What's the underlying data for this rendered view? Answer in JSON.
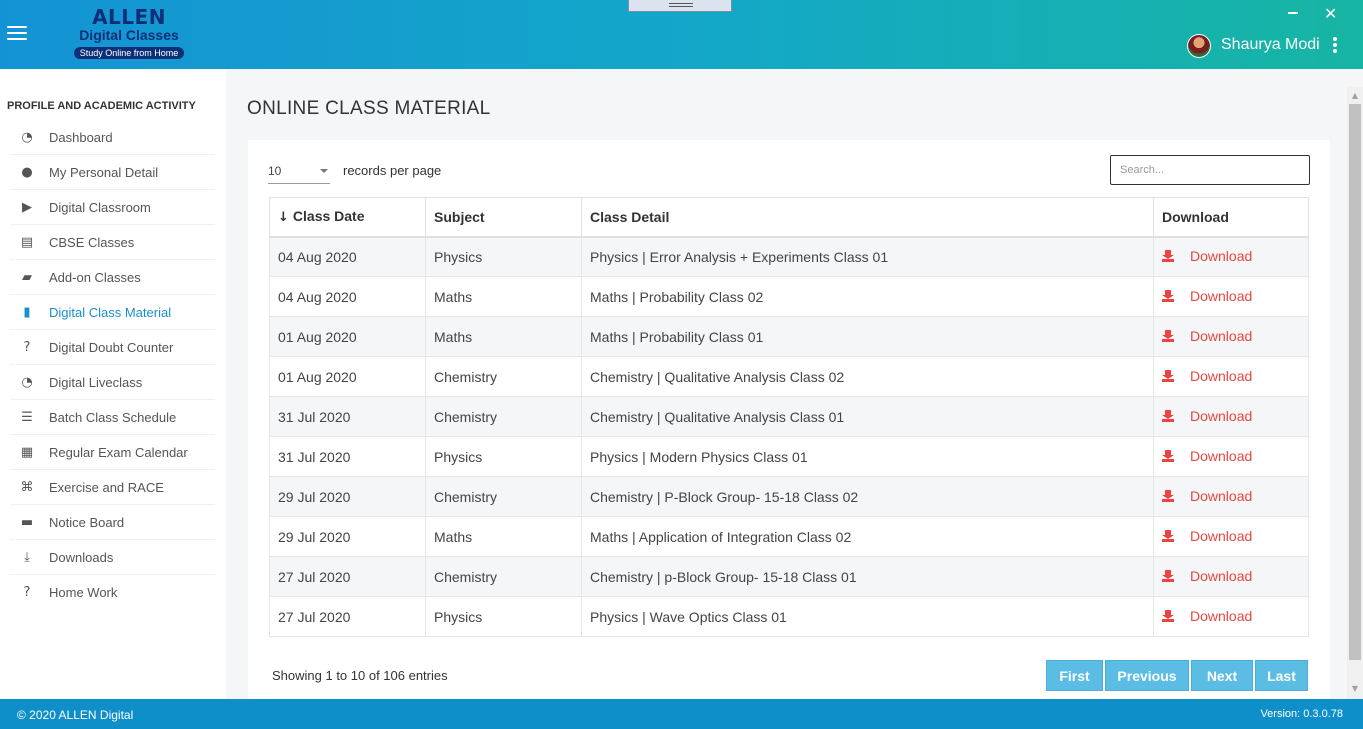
{
  "header": {
    "logo_main": "ALLEN",
    "logo_sub": "Digital Classes",
    "logo_tag": "Study Online from Home",
    "user_name": "Shaurya Modi"
  },
  "sidebar": {
    "title": "PROFILE AND ACADEMIC ACTIVITY",
    "items": [
      {
        "label": "Dashboard",
        "icon": "dashboard-icon"
      },
      {
        "label": "My Personal Detail",
        "icon": "user-icon"
      },
      {
        "label": "Digital Classroom",
        "icon": "play-icon"
      },
      {
        "label": "CBSE Classes",
        "icon": "book-open-icon"
      },
      {
        "label": "Add-on Classes",
        "icon": "chat-icon"
      },
      {
        "label": "Digital Class Material",
        "icon": "book-icon"
      },
      {
        "label": "Digital Doubt Counter",
        "icon": "question-icon"
      },
      {
        "label": "Digital Liveclass",
        "icon": "dashboard-icon"
      },
      {
        "label": "Batch Class Schedule",
        "icon": "list-icon"
      },
      {
        "label": "Regular Exam Calendar",
        "icon": "calendar-icon"
      },
      {
        "label": "Exercise and RACE",
        "icon": "translate-icon"
      },
      {
        "label": "Notice Board",
        "icon": "newspaper-icon"
      },
      {
        "label": "Downloads",
        "icon": "download-icon"
      },
      {
        "label": "Home Work",
        "icon": "question-icon"
      }
    ],
    "active_index": 5
  },
  "main": {
    "title": "ONLINE CLASS MATERIAL",
    "per_page_value": "10",
    "per_page_label": "records per page",
    "search_placeholder": "Search...",
    "columns": [
      "Class Date",
      "Subject",
      "Class Detail",
      "Download"
    ],
    "rows": [
      {
        "date": "04 Aug 2020",
        "subject": "Physics",
        "detail": "Physics | Error Analysis + Experiments Class 01",
        "action": "Download"
      },
      {
        "date": "04 Aug 2020",
        "subject": "Maths",
        "detail": "Maths | Probability Class 02",
        "action": "Download"
      },
      {
        "date": "01 Aug 2020",
        "subject": "Maths",
        "detail": "Maths | Probability Class 01",
        "action": "Download"
      },
      {
        "date": "01 Aug 2020",
        "subject": "Chemistry",
        "detail": "Chemistry | Qualitative Analysis Class 02",
        "action": "Download"
      },
      {
        "date": "31 Jul 2020",
        "subject": "Chemistry",
        "detail": "Chemistry | Qualitative Analysis Class 01",
        "action": "Download"
      },
      {
        "date": "31 Jul 2020",
        "subject": "Physics",
        "detail": "Physics | Modern Physics Class 01",
        "action": "Download"
      },
      {
        "date": "29 Jul 2020",
        "subject": "Chemistry",
        "detail": "Chemistry | P-Block Group- 15-18 Class 02",
        "action": "Download"
      },
      {
        "date": "29 Jul 2020",
        "subject": "Maths",
        "detail": "Maths | Application of Integration Class 02",
        "action": "Download"
      },
      {
        "date": "27 Jul 2020",
        "subject": "Chemistry",
        "detail": "Chemistry | p-Block Group- 15-18 Class 01",
        "action": "Download"
      },
      {
        "date": "27 Jul 2020",
        "subject": "Physics",
        "detail": "Physics | Wave Optics Class 01",
        "action": "Download"
      }
    ],
    "showing": "Showing 1 to 10 of 106 entries",
    "pager": [
      "First",
      "Previous",
      "Next",
      "Last"
    ]
  },
  "footer": {
    "copyright": "©  2020  ALLEN Digital",
    "version": "Version: 0.3.0.78"
  },
  "colors": {
    "accent": "#1a8fce",
    "download": "#e8463f",
    "pager": "#5bbde4",
    "footer": "#0e8fca"
  }
}
